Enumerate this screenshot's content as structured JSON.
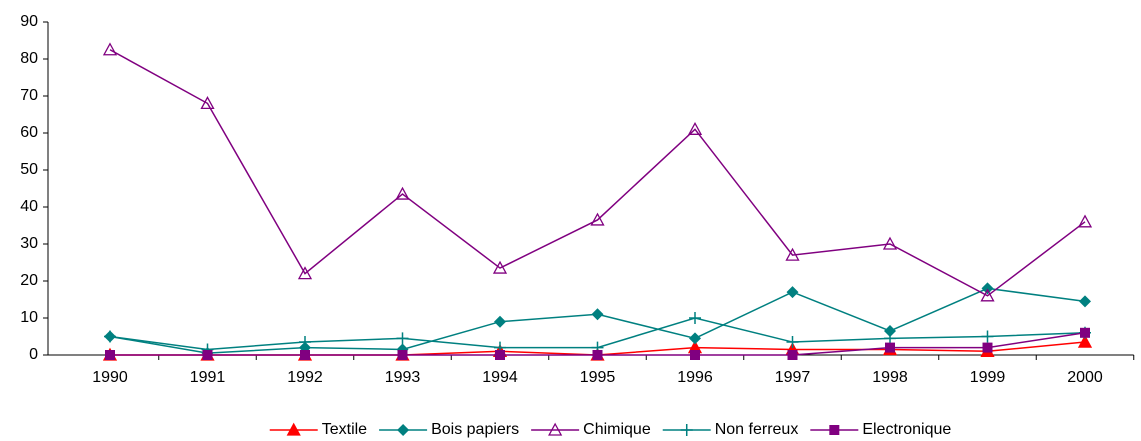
{
  "chart_data": {
    "type": "line",
    "categories": [
      "1990",
      "1991",
      "1992",
      "1993",
      "1994",
      "1995",
      "1996",
      "1997",
      "1998",
      "1999",
      "2000"
    ],
    "series": [
      {
        "name": "Textile",
        "color": "#ff0000",
        "marker": "triangle",
        "values": [
          0,
          0,
          0,
          0,
          1,
          0,
          2,
          1.5,
          1.5,
          1,
          3.5
        ]
      },
      {
        "name": "Bois papiers",
        "color": "#008080",
        "marker": "diamond",
        "values": [
          5,
          0.5,
          2,
          1.5,
          9,
          11,
          4.5,
          17,
          6.5,
          18,
          14.5
        ]
      },
      {
        "name": "Chimique",
        "color": "#800080",
        "marker": "open-triangle",
        "values": [
          82.5,
          68,
          22,
          43.5,
          23.5,
          36.5,
          61,
          27,
          30,
          16,
          36
        ]
      },
      {
        "name": "Non ferreux",
        "color": "#008080",
        "marker": "plus",
        "values": [
          5,
          1.5,
          3.5,
          4.5,
          2,
          2,
          10,
          3.5,
          4.5,
          5,
          6
        ]
      },
      {
        "name": "Electronique",
        "color": "#800080",
        "marker": "square",
        "values": [
          0,
          0,
          0,
          0,
          0,
          0,
          0,
          0,
          2,
          2,
          6
        ]
      }
    ],
    "ylim": [
      0,
      90
    ],
    "yticks": [
      0,
      10,
      20,
      30,
      40,
      50,
      60,
      70,
      80,
      90
    ],
    "legend": "bottom"
  }
}
